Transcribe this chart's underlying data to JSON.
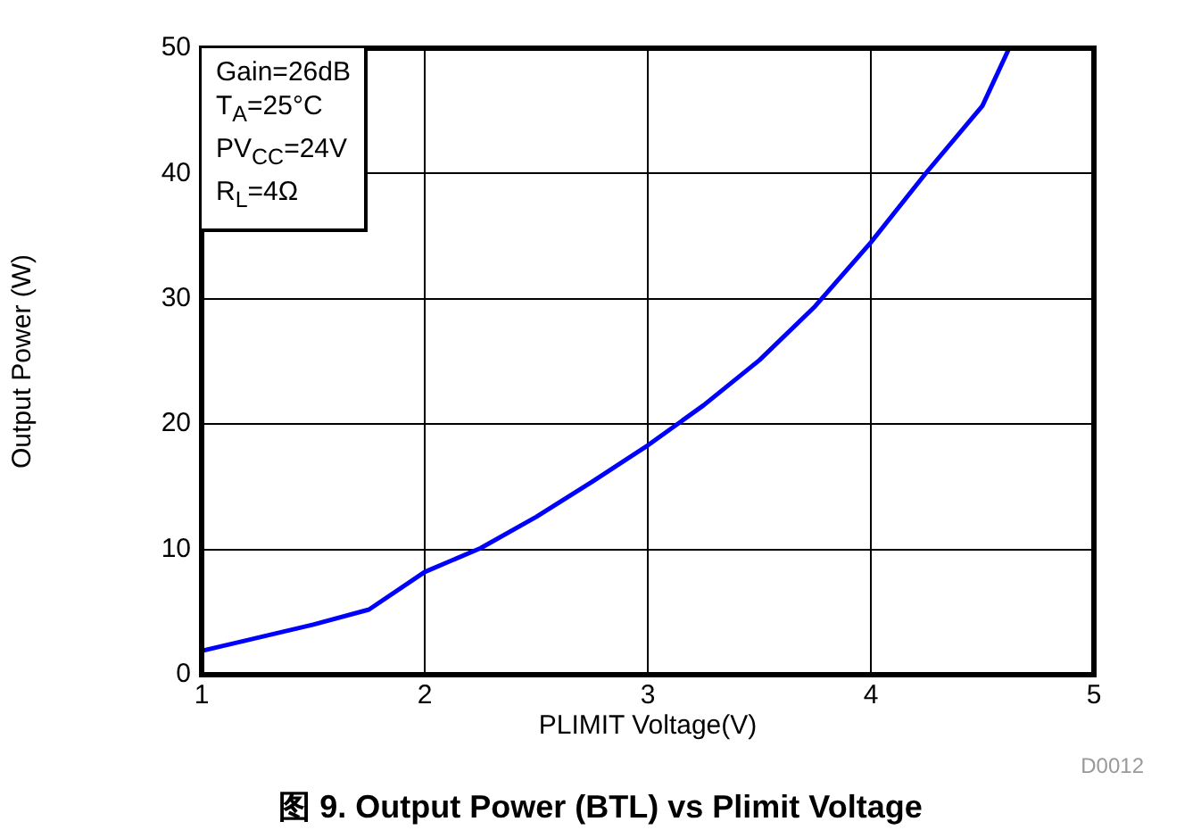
{
  "chart_data": {
    "type": "line",
    "title": "图 9. Output Power (BTL) vs Plimit Voltage",
    "xlabel": "PLIMIT Voltage(V)",
    "ylabel": "Output Power (W)",
    "x": [
      1,
      1.5,
      1.75,
      2,
      2.25,
      2.5,
      2.75,
      3,
      3.25,
      3.5,
      3.75,
      4,
      4.25,
      4.5,
      4.62
    ],
    "series": [
      {
        "color": "#0000ff",
        "values": [
          1.9,
          4.0,
          5.2,
          8.2,
          10.1,
          12.6,
          15.4,
          18.3,
          21.5,
          25.1,
          29.4,
          34.5,
          40.1,
          45.4,
          50
        ]
      }
    ],
    "xlim": [
      1,
      5
    ],
    "xticks": [
      1,
      2,
      3,
      4,
      5
    ],
    "ylim": [
      0,
      50
    ],
    "yticks": [
      0,
      10,
      20,
      30,
      40,
      50
    ],
    "grid": true,
    "legend": false,
    "marker": "none",
    "line_style": "solid",
    "annotations": [
      "Gain=26dB\nT$_{A}$=25°C\nPV$_{CC}$=24V\nR$_{L}$=4Ω",
      "D0012"
    ]
  }
}
